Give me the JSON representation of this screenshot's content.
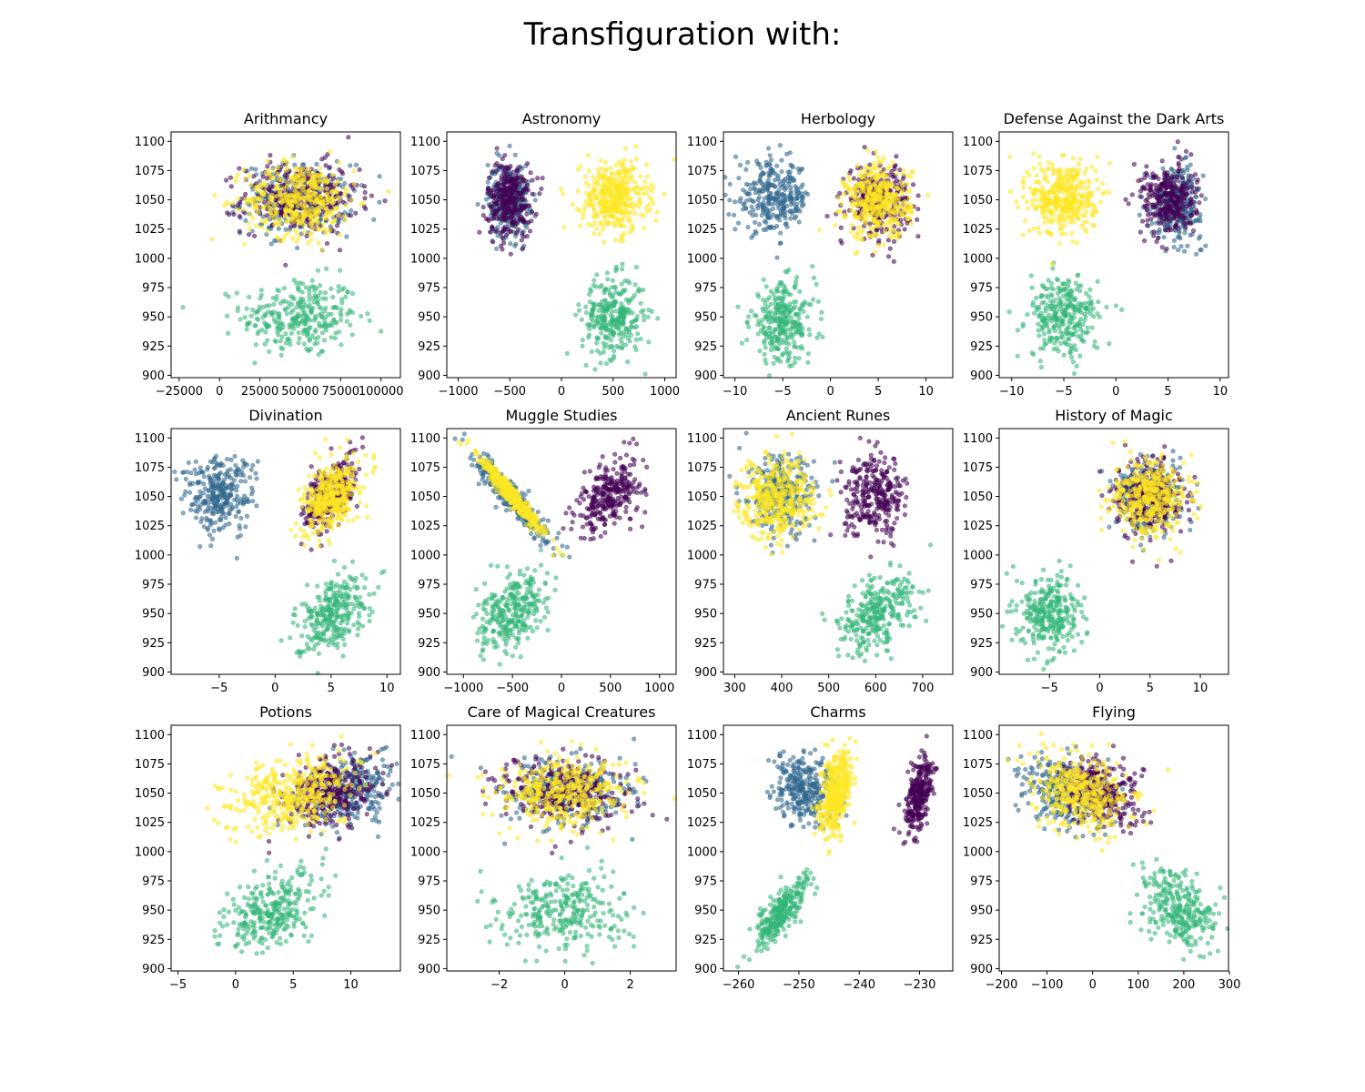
{
  "figure": {
    "title": "Transfiguration with:"
  },
  "house_colors": [
    "#440154",
    "#31688e",
    "#35b779",
    "#fde725"
  ],
  "chart_data": [
    {
      "type": "scatter",
      "title": "Arithmancy",
      "xlim": [
        -30000,
        112000
      ],
      "ylim": [
        898,
        1108
      ],
      "xticks": [
        -25000,
        0,
        25000,
        50000,
        75000,
        100000
      ],
      "xtick_labels": [
        "−25000",
        "0",
        "25000",
        "50000",
        "75000",
        "100000"
      ],
      "yticks": [
        900,
        925,
        950,
        975,
        1000,
        1025,
        1050,
        1075,
        1100
      ],
      "clusters": [
        {
          "house": 0,
          "cx": 50000,
          "sx": 18000,
          "cy": 1052,
          "sy": 15,
          "n": 300,
          "r": 0
        },
        {
          "house": 1,
          "cx": 48000,
          "sx": 17000,
          "cy": 1050,
          "sy": 15,
          "n": 300,
          "r": 0
        },
        {
          "house": 2,
          "cx": 50000,
          "sx": 18000,
          "cy": 950,
          "sy": 17,
          "n": 300,
          "r": 0
        },
        {
          "house": 3,
          "cx": 50000,
          "sx": 17000,
          "cy": 1050,
          "sy": 16,
          "n": 400,
          "r": 0
        }
      ]
    },
    {
      "type": "scatter",
      "title": "Astronomy",
      "xlim": [
        -1110,
        1110
      ],
      "ylim": [
        898,
        1108
      ],
      "xticks": [
        -1000,
        -500,
        0,
        500,
        1000
      ],
      "xtick_labels": [
        "−1000",
        "−500",
        "0",
        "500",
        "1000"
      ],
      "yticks": [
        900,
        925,
        950,
        975,
        1000,
        1025,
        1050,
        1075,
        1100
      ],
      "clusters": [
        {
          "house": 0,
          "cx": -500,
          "sx": 110,
          "cy": 1050,
          "sy": 16,
          "n": 300,
          "r": 0
        },
        {
          "house": 1,
          "cx": -510,
          "sx": 100,
          "cy": 1050,
          "sy": 16,
          "n": 300,
          "r": 0
        },
        {
          "house": 2,
          "cx": 500,
          "sx": 150,
          "cy": 950,
          "sy": 17,
          "n": 300,
          "r": 0
        },
        {
          "house": 3,
          "cx": 510,
          "sx": 160,
          "cy": 1052,
          "sy": 15,
          "n": 400,
          "r": 0
        }
      ]
    },
    {
      "type": "scatter",
      "title": "Herbology",
      "xlim": [
        -11.2,
        12.8
      ],
      "ylim": [
        898,
        1108
      ],
      "xticks": [
        -10,
        -5,
        0,
        5,
        10
      ],
      "xtick_labels": [
        "−10",
        "−5",
        "0",
        "5",
        "10"
      ],
      "yticks": [
        900,
        925,
        950,
        975,
        1000,
        1025,
        1050,
        1075,
        1100
      ],
      "clusters": [
        {
          "house": 0,
          "cx": 5,
          "sx": 1.6,
          "cy": 1050,
          "sy": 15,
          "n": 300,
          "r": 0
        },
        {
          "house": 1,
          "cx": -6,
          "sx": 2.0,
          "cy": 1052,
          "sy": 15,
          "n": 300,
          "r": 0
        },
        {
          "house": 2,
          "cx": -5,
          "sx": 1.7,
          "cy": 945,
          "sy": 17,
          "n": 300,
          "r": 0
        },
        {
          "house": 3,
          "cx": 5,
          "sx": 1.7,
          "cy": 1048,
          "sy": 16,
          "n": 400,
          "r": 0
        }
      ]
    },
    {
      "type": "scatter",
      "title": "Defense Against the Dark Arts",
      "xlim": [
        -11.2,
        10.8
      ],
      "ylim": [
        898,
        1108
      ],
      "xticks": [
        -10,
        -5,
        0,
        5,
        10
      ],
      "xtick_labels": [
        "−10",
        "−5",
        "0",
        "5",
        "10"
      ],
      "yticks": [
        900,
        925,
        950,
        975,
        1000,
        1025,
        1050,
        1075,
        1100
      ],
      "clusters": [
        {
          "house": 0,
          "cx": 5,
          "sx": 1.3,
          "cy": 1050,
          "sy": 15,
          "n": 300,
          "r": 0
        },
        {
          "house": 1,
          "cx": 5.8,
          "sx": 1.2,
          "cy": 1048,
          "sy": 15,
          "n": 300,
          "r": 0
        },
        {
          "house": 2,
          "cx": -5,
          "sx": 1.7,
          "cy": 950,
          "sy": 17,
          "n": 300,
          "r": 0
        },
        {
          "house": 3,
          "cx": -5,
          "sx": 1.6,
          "cy": 1052,
          "sy": 16,
          "n": 400,
          "r": 0
        }
      ]
    },
    {
      "type": "scatter",
      "title": "Divination",
      "xlim": [
        -9.3,
        11.2
      ],
      "ylim": [
        898,
        1108
      ],
      "xticks": [
        -5,
        0,
        5,
        10
      ],
      "xtick_labels": [
        "−5",
        "0",
        "5",
        "10"
      ],
      "yticks": [
        900,
        925,
        950,
        975,
        1000,
        1025,
        1050,
        1075,
        1100
      ],
      "clusters": [
        {
          "house": 0,
          "cx": 5,
          "sx": 1.2,
          "cy": 1052,
          "sy": 16,
          "n": 300,
          "r": 0.5
        },
        {
          "house": 1,
          "cx": -5,
          "sx": 1.6,
          "cy": 1052,
          "sy": 16,
          "n": 300,
          "r": 0
        },
        {
          "house": 2,
          "cx": 5,
          "sx": 1.6,
          "cy": 950,
          "sy": 17,
          "n": 300,
          "r": 0.5
        },
        {
          "house": 3,
          "cx": 5,
          "sx": 1.2,
          "cy": 1050,
          "sy": 16,
          "n": 400,
          "r": 0.5
        }
      ]
    },
    {
      "type": "scatter",
      "title": "Muggle Studies",
      "xlim": [
        -1170,
        1170
      ],
      "ylim": [
        898,
        1108
      ],
      "xticks": [
        -1000,
        -500,
        0,
        500,
        1000
      ],
      "xtick_labels": [
        "−1000",
        "−500",
        "0",
        "500",
        "1000"
      ],
      "yticks": [
        900,
        925,
        950,
        975,
        1000,
        1025,
        1050,
        1075,
        1100
      ],
      "clusters": [
        {
          "house": 0,
          "cx": 500,
          "sx": 170,
          "cy": 1052,
          "sy": 16,
          "n": 300,
          "r": 0.5
        },
        {
          "house": 1,
          "cx": -500,
          "sx": 180,
          "cy": 1048,
          "sy": 17,
          "n": 300,
          "r": -0.92
        },
        {
          "house": 2,
          "cx": -500,
          "sx": 180,
          "cy": 950,
          "sy": 17,
          "n": 300,
          "r": 0.4
        },
        {
          "house": 3,
          "cx": -500,
          "sx": 170,
          "cy": 1050,
          "sy": 17,
          "n": 400,
          "r": -0.97
        }
      ]
    },
    {
      "type": "scatter",
      "title": "Ancient Runes",
      "xlim": [
        276,
        764
      ],
      "ylim": [
        898,
        1108
      ],
      "xticks": [
        300,
        400,
        500,
        600,
        700
      ],
      "xtick_labels": [
        "300",
        "400",
        "500",
        "600",
        "700"
      ],
      "yticks": [
        900,
        925,
        950,
        975,
        1000,
        1025,
        1050,
        1075,
        1100
      ],
      "clusters": [
        {
          "house": 0,
          "cx": 600,
          "sx": 33,
          "cy": 1050,
          "sy": 17,
          "n": 300,
          "r": 0
        },
        {
          "house": 1,
          "cx": 400,
          "sx": 35,
          "cy": 1050,
          "sy": 17,
          "n": 300,
          "r": 0
        },
        {
          "house": 2,
          "cx": 600,
          "sx": 42,
          "cy": 950,
          "sy": 17,
          "n": 300,
          "r": 0.45
        },
        {
          "house": 3,
          "cx": 390,
          "sx": 40,
          "cy": 1048,
          "sy": 17,
          "n": 400,
          "r": 0
        }
      ]
    },
    {
      "type": "scatter",
      "title": "History of Magic",
      "xlim": [
        -10,
        12.8
      ],
      "ylim": [
        898,
        1108
      ],
      "xticks": [
        -5,
        0,
        5,
        10
      ],
      "xtick_labels": [
        "−5",
        "0",
        "5",
        "10"
      ],
      "yticks": [
        900,
        925,
        950,
        975,
        1000,
        1025,
        1050,
        1075,
        1100
      ],
      "clusters": [
        {
          "house": 0,
          "cx": 5,
          "sx": 1.6,
          "cy": 1050,
          "sy": 15,
          "n": 300,
          "r": 0
        },
        {
          "house": 1,
          "cx": 5,
          "sx": 1.6,
          "cy": 1050,
          "sy": 15,
          "n": 300,
          "r": 0
        },
        {
          "house": 2,
          "cx": -5,
          "sx": 1.5,
          "cy": 950,
          "sy": 17,
          "n": 300,
          "r": 0
        },
        {
          "house": 3,
          "cx": 5,
          "sx": 1.9,
          "cy": 1050,
          "sy": 16,
          "n": 400,
          "r": 0
        }
      ]
    },
    {
      "type": "scatter",
      "title": "Potions",
      "xlim": [
        -5.6,
        14.3
      ],
      "ylim": [
        898,
        1108
      ],
      "xticks": [
        -5,
        0,
        5,
        10
      ],
      "xtick_labels": [
        "−5",
        "0",
        "5",
        "10"
      ],
      "yticks": [
        900,
        925,
        950,
        975,
        1000,
        1025,
        1050,
        1075,
        1100
      ],
      "clusters": [
        {
          "house": 0,
          "cx": 8,
          "sx": 2.0,
          "cy": 1050,
          "sy": 15,
          "n": 300,
          "r": 0.3
        },
        {
          "house": 1,
          "cx": 10,
          "sx": 2.0,
          "cy": 1052,
          "sy": 15,
          "n": 300,
          "r": 0.3
        },
        {
          "house": 2,
          "cx": 3,
          "sx": 2.0,
          "cy": 948,
          "sy": 17,
          "n": 300,
          "r": 0.45
        },
        {
          "house": 3,
          "cx": 5,
          "sx": 2.6,
          "cy": 1050,
          "sy": 16,
          "n": 400,
          "r": 0.3
        }
      ]
    },
    {
      "type": "scatter",
      "title": "Care of Magical Creatures",
      "xlim": [
        -3.6,
        3.4
      ],
      "ylim": [
        898,
        1108
      ],
      "xticks": [
        -2,
        0,
        2
      ],
      "xtick_labels": [
        "−2",
        "0",
        "2"
      ],
      "yticks": [
        900,
        925,
        950,
        975,
        1000,
        1025,
        1050,
        1075,
        1100
      ],
      "clusters": [
        {
          "house": 0,
          "cx": 0,
          "sx": 1.0,
          "cy": 1050,
          "sy": 15,
          "n": 300,
          "r": 0
        },
        {
          "house": 1,
          "cx": 0,
          "sx": 1.0,
          "cy": 1050,
          "sy": 15,
          "n": 300,
          "r": 0
        },
        {
          "house": 2,
          "cx": 0,
          "sx": 1.0,
          "cy": 948,
          "sy": 17,
          "n": 300,
          "r": 0
        },
        {
          "house": 3,
          "cx": 0,
          "sx": 1.0,
          "cy": 1050,
          "sy": 15,
          "n": 400,
          "r": 0
        }
      ]
    },
    {
      "type": "scatter",
      "title": "Charms",
      "xlim": [
        -262.5,
        -224.5
      ],
      "ylim": [
        898,
        1108
      ],
      "xticks": [
        -260,
        -250,
        -240,
        -230
      ],
      "xtick_labels": [
        "−260",
        "−250",
        "−240",
        "−230"
      ],
      "yticks": [
        900,
        925,
        950,
        975,
        1000,
        1025,
        1050,
        1075,
        1100
      ],
      "clusters": [
        {
          "house": 0,
          "cx": -230,
          "sx": 1.2,
          "cy": 1050,
          "sy": 17,
          "n": 300,
          "r": 0.6
        },
        {
          "house": 1,
          "cx": -249,
          "sx": 2.5,
          "cy": 1052,
          "sy": 15,
          "n": 300,
          "r": 0
        },
        {
          "house": 2,
          "cx": -253,
          "sx": 2.5,
          "cy": 948,
          "sy": 17,
          "n": 300,
          "r": 0.85
        },
        {
          "house": 3,
          "cx": -244,
          "sx": 1.3,
          "cy": 1050,
          "sy": 17,
          "n": 400,
          "r": 0.4
        }
      ]
    },
    {
      "type": "scatter",
      "title": "Flying",
      "xlim": [
        -205,
        298
      ],
      "ylim": [
        898,
        1108
      ],
      "xticks": [
        -200,
        -100,
        0,
        100,
        200,
        300
      ],
      "xtick_labels": [
        "−200",
        "−100",
        "0",
        "100",
        "200",
        "300"
      ],
      "yticks": [
        900,
        925,
        950,
        975,
        1000,
        1025,
        1050,
        1075,
        1100
      ],
      "clusters": [
        {
          "house": 0,
          "cx": 20,
          "sx": 45,
          "cy": 1050,
          "sy": 15,
          "n": 300,
          "r": -0.3
        },
        {
          "house": 1,
          "cx": -60,
          "sx": 50,
          "cy": 1052,
          "sy": 15,
          "n": 300,
          "r": -0.3
        },
        {
          "house": 2,
          "cx": 190,
          "sx": 40,
          "cy": 950,
          "sy": 17,
          "n": 300,
          "r": -0.3
        },
        {
          "house": 3,
          "cx": -20,
          "sx": 55,
          "cy": 1050,
          "sy": 16,
          "n": 400,
          "r": -0.3
        }
      ]
    }
  ]
}
